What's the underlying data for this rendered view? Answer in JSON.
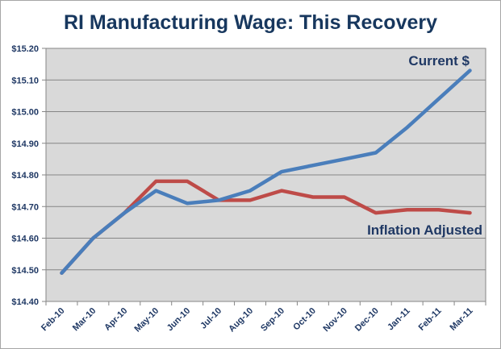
{
  "chart_data": {
    "type": "line",
    "title": "RI Manufacturing Wage: This Recovery",
    "xlabel": "",
    "ylabel": "",
    "ylim": [
      14.4,
      15.2
    ],
    "yticks": [
      "$14.40",
      "$14.50",
      "$14.60",
      "$14.70",
      "$14.80",
      "$14.90",
      "$15.00",
      "$15.10",
      "$15.20"
    ],
    "categories": [
      "Feb-10",
      "Mar-10",
      "Apr-10",
      "May-10",
      "Jun-10",
      "Jul-10",
      "Aug-10",
      "Sep-10",
      "Oct-10",
      "Nov-10",
      "Dec-10",
      "Jan-11",
      "Feb-11",
      "Mar-11"
    ],
    "grid": true,
    "legend": "none",
    "series": [
      {
        "name": "Current $",
        "color": "#4a7ebb",
        "values": [
          14.49,
          14.6,
          14.68,
          14.75,
          14.71,
          14.72,
          14.75,
          14.81,
          14.83,
          14.85,
          14.87,
          14.95,
          15.04,
          15.13
        ]
      },
      {
        "name": "Inflation Adjusted",
        "color": "#be4b48",
        "values": [
          14.49,
          14.6,
          14.68,
          14.78,
          14.78,
          14.72,
          14.72,
          14.75,
          14.73,
          14.73,
          14.68,
          14.69,
          14.69,
          14.68
        ]
      }
    ]
  }
}
